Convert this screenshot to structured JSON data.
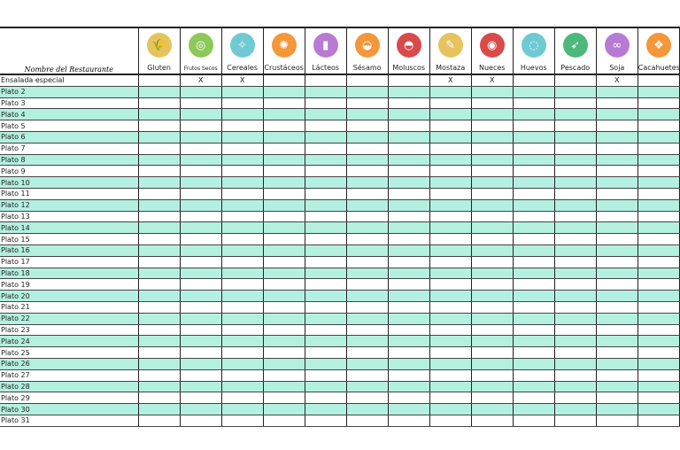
{
  "header": {
    "name_label": "Nombre del Restaurante"
  },
  "allergens": [
    {
      "label": "Gluten",
      "icon": "wheat-icon",
      "color": "#e6c35c",
      "glyph": "🌾"
    },
    {
      "label": "Frutos Secos",
      "icon": "nuts-icon",
      "color": "#8dc85b",
      "glyph": "◎"
    },
    {
      "label": "Cereales",
      "icon": "cereal-icon",
      "color": "#6fcad3",
      "glyph": "✧"
    },
    {
      "label": "Crustáceos",
      "icon": "crab-icon",
      "color": "#f4963a",
      "glyph": "✺"
    },
    {
      "label": "Lácteos",
      "icon": "milk-bottle-icon",
      "color": "#b77bd3",
      "glyph": "▮"
    },
    {
      "label": "Sésamo",
      "icon": "sesame-icon",
      "color": "#f4963a",
      "glyph": "◒"
    },
    {
      "label": "Moluscos",
      "icon": "shell-icon",
      "color": "#d94a4a",
      "glyph": "◓"
    },
    {
      "label": "Mostaza",
      "icon": "mustard-icon",
      "color": "#e6c35c",
      "glyph": "✎"
    },
    {
      "label": "Nueces",
      "icon": "walnut-icon",
      "color": "#d94a4a",
      "glyph": "◉"
    },
    {
      "label": "Huevos",
      "icon": "egg-icon",
      "color": "#6fcad3",
      "glyph": "◌"
    },
    {
      "label": "Pescado",
      "icon": "fish-icon",
      "color": "#4cb97a",
      "glyph": "➶"
    },
    {
      "label": "Soja",
      "icon": "soy-icon",
      "color": "#b77bd3",
      "glyph": "∞"
    },
    {
      "label": "Cacahuetes",
      "icon": "peanut-icon",
      "color": "#f4963a",
      "glyph": "❖"
    }
  ],
  "colors": {
    "alt_row": "#b4f0df"
  },
  "rows": [
    {
      "dish": "Ensalada especial",
      "marks": [
        "",
        "X",
        "X",
        "",
        "",
        "",
        "",
        "X",
        "X",
        "",
        "",
        "X",
        ""
      ]
    },
    {
      "dish": "Plato 2"
    },
    {
      "dish": "Plato 3"
    },
    {
      "dish": "Plato 4"
    },
    {
      "dish": "Plato 5"
    },
    {
      "dish": "Plato 6"
    },
    {
      "dish": "Plato 7"
    },
    {
      "dish": "Plato 8"
    },
    {
      "dish": "Plato 9"
    },
    {
      "dish": "Plato 10"
    },
    {
      "dish": "Plato 11"
    },
    {
      "dish": "Plato 12"
    },
    {
      "dish": "Plato 13"
    },
    {
      "dish": "Plato 14"
    },
    {
      "dish": "Plato 15"
    },
    {
      "dish": "Plato 16"
    },
    {
      "dish": "Plato 17"
    },
    {
      "dish": "Plato 18"
    },
    {
      "dish": "Plato 19"
    },
    {
      "dish": "Plato 20"
    },
    {
      "dish": "Plato 21"
    },
    {
      "dish": "Plato 22"
    },
    {
      "dish": "Plato 23"
    },
    {
      "dish": "Plato 24"
    },
    {
      "dish": "Plato 25"
    },
    {
      "dish": "Plato 26"
    },
    {
      "dish": "Plato 27"
    },
    {
      "dish": "Plato 28"
    },
    {
      "dish": "Plato 29"
    },
    {
      "dish": "Plato 30"
    },
    {
      "dish": "Plato 31"
    }
  ]
}
